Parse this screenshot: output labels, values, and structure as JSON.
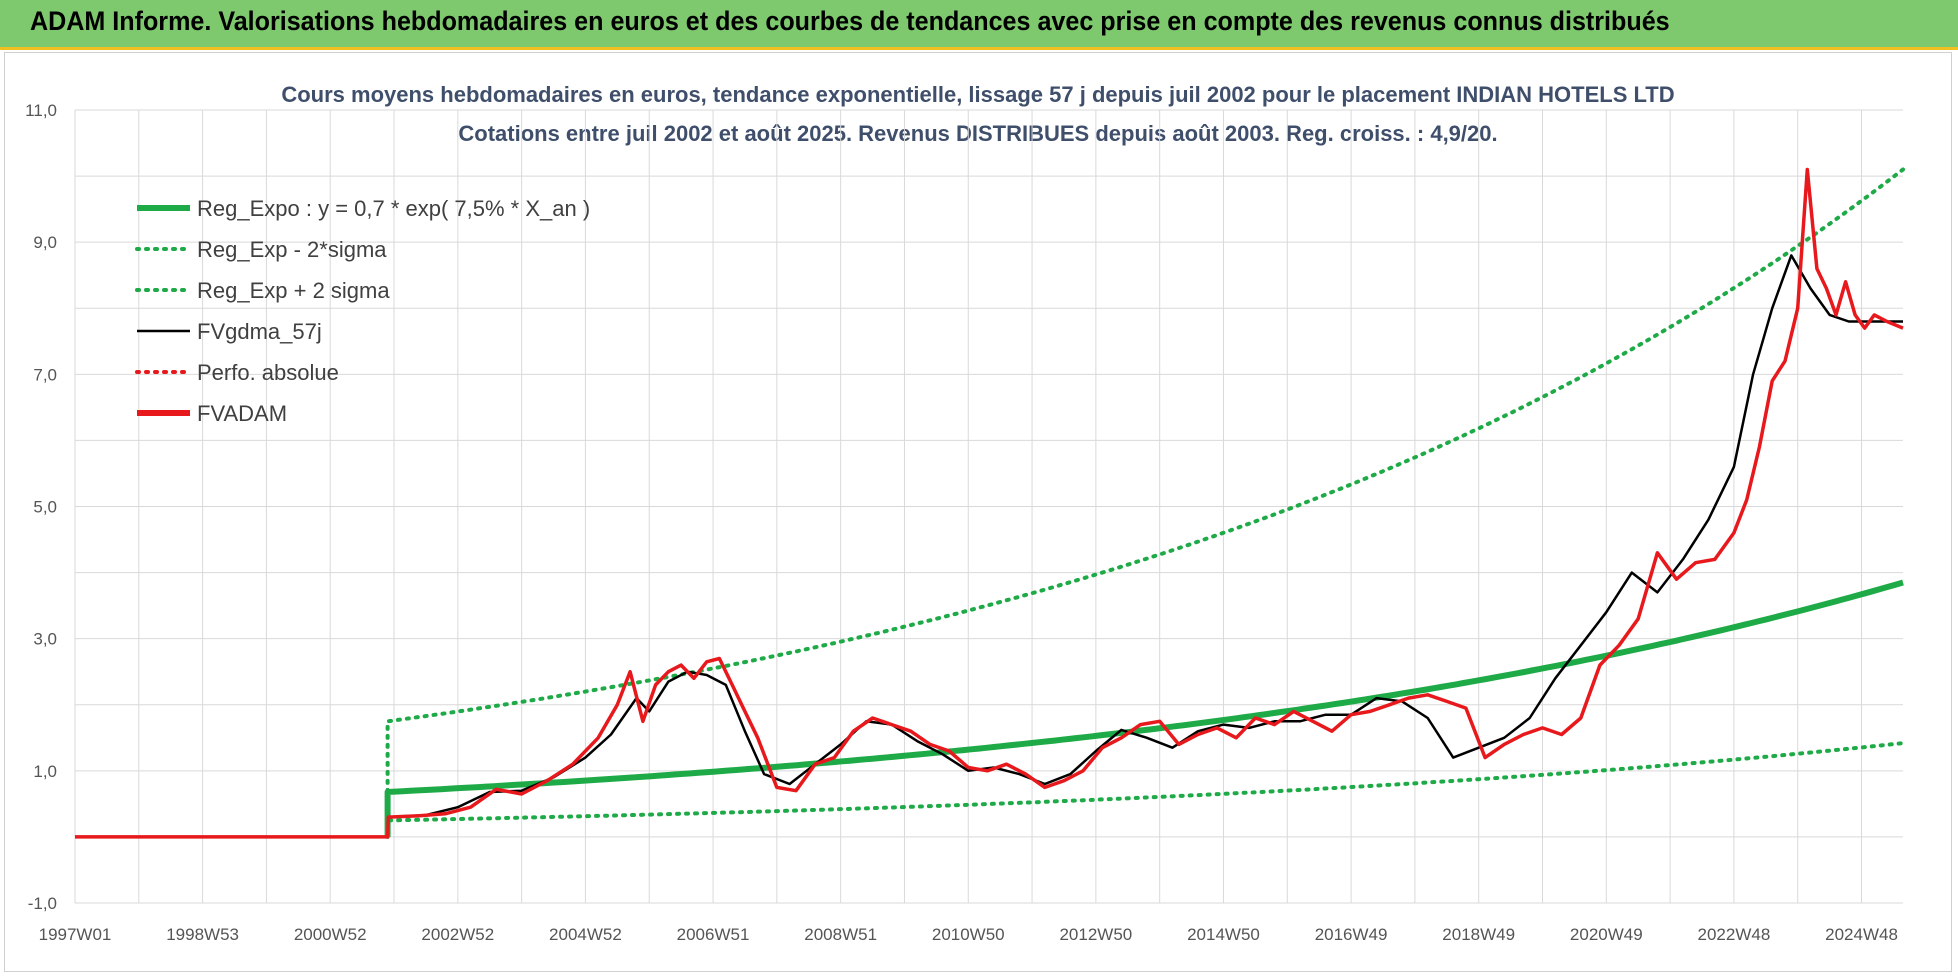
{
  "banner": {
    "title": "ADAM Informe. Valorisations hebdomadaires en euros et des courbes de tendances avec prise en compte des revenus connus distribués",
    "color": "#7ec86e"
  },
  "chart_data": {
    "type": "line",
    "title_line1": "Cours moyens hebdomadaires en euros, tendance exponentielle, lissage 57 j depuis juil 2002 pour le placement INDIAN HOTELS LTD",
    "title_line2": "Cotations entre juil 2002 et août 2025. Revenus DISTRIBUES depuis août 2003. Reg. croiss. : 4,9/20.",
    "ylim": [
      -1,
      11
    ],
    "y_ticks": [
      "-1,0",
      "1,0",
      "3,0",
      "5,0",
      "7,0",
      "9,0",
      "11,0"
    ],
    "x_range": [
      1997.0,
      2025.65
    ],
    "x_tick_labels": [
      "1997W01",
      "1998W53",
      "2000W52",
      "2002W52",
      "2004W52",
      "2006W51",
      "2008W51",
      "2010W50",
      "2012W50",
      "2014W50",
      "2016W49",
      "2018W49",
      "2020W49",
      "2022W48",
      "2024W48"
    ],
    "x_tick_years": [
      1997.0,
      1999.0,
      2001.0,
      2003.0,
      2005.0,
      2007.0,
      2009.0,
      2011.0,
      2013.0,
      2015.0,
      2017.0,
      2019.0,
      2021.0,
      2023.0,
      2025.0
    ],
    "grid": true,
    "legend_position": "top-left",
    "start_year": 2001.9,
    "series": [
      {
        "name": "Reg_Expo : y = 0,7 * exp( 7,5% *  X_an )",
        "color": "#1faa48",
        "style": "solid-thick",
        "x": [
          2001.9,
          2025.65
        ],
        "y": [
          0.68,
          3.85
        ]
      },
      {
        "name": "Reg_Exp - 2*sigma",
        "color": "#1faa48",
        "style": "dotted",
        "x": [
          2001.9,
          2025.65
        ],
        "y": [
          0.25,
          1.42
        ]
      },
      {
        "name": "Reg_Exp + 2 sigma",
        "color": "#1faa48",
        "style": "dotted",
        "x": [
          2001.9,
          2025.65
        ],
        "y": [
          1.75,
          10.1
        ]
      },
      {
        "name": "FVgdma_57j",
        "color": "#000000",
        "style": "solid",
        "x": [
          1997.0,
          2001.9,
          2001.91,
          2002.5,
          2003.0,
          2003.5,
          2004.0,
          2004.5,
          2005.0,
          2005.4,
          2005.8,
          2006.0,
          2006.3,
          2006.6,
          2006.9,
          2007.2,
          2007.5,
          2007.8,
          2008.2,
          2008.6,
          2009.0,
          2009.4,
          2009.8,
          2010.2,
          2010.6,
          2011.0,
          2011.4,
          2011.8,
          2012.2,
          2012.6,
          2013.0,
          2013.4,
          2013.8,
          2014.2,
          2014.6,
          2015.0,
          2015.4,
          2015.8,
          2016.2,
          2016.6,
          2017.0,
          2017.4,
          2017.8,
          2018.2,
          2018.6,
          2019.0,
          2019.4,
          2019.8,
          2020.2,
          2020.6,
          2021.0,
          2021.4,
          2021.8,
          2022.2,
          2022.6,
          2023.0,
          2023.3,
          2023.6,
          2023.9,
          2024.2,
          2024.5,
          2024.8,
          2025.0,
          2025.3,
          2025.65
        ],
        "y": [
          0.0,
          0.0,
          0.3,
          0.33,
          0.45,
          0.68,
          0.7,
          0.9,
          1.2,
          1.55,
          2.1,
          1.9,
          2.35,
          2.5,
          2.45,
          2.3,
          1.6,
          0.95,
          0.8,
          1.1,
          1.4,
          1.75,
          1.7,
          1.45,
          1.25,
          1.0,
          1.05,
          0.95,
          0.8,
          0.95,
          1.3,
          1.62,
          1.5,
          1.35,
          1.6,
          1.7,
          1.65,
          1.75,
          1.75,
          1.85,
          1.85,
          2.1,
          2.05,
          1.8,
          1.2,
          1.35,
          1.5,
          1.8,
          2.4,
          2.9,
          3.4,
          4.0,
          3.7,
          4.2,
          4.8,
          5.6,
          7.0,
          8.0,
          8.8,
          8.3,
          7.9,
          7.8,
          7.8,
          7.8,
          7.8
        ]
      },
      {
        "name": "Perfo. absolue",
        "color": "#e8191c",
        "style": "dotted",
        "x": [],
        "y": []
      },
      {
        "name": "FVADAM",
        "color": "#e8191c",
        "style": "solid-thick",
        "x": [
          1997.0,
          2001.9,
          2001.91,
          2002.4,
          2002.8,
          2003.2,
          2003.6,
          2004.0,
          2004.4,
          2004.8,
          2005.2,
          2005.5,
          2005.7,
          2005.9,
          2006.1,
          2006.3,
          2006.5,
          2006.7,
          2006.9,
          2007.1,
          2007.3,
          2007.5,
          2007.7,
          2008.0,
          2008.3,
          2008.6,
          2008.9,
          2009.2,
          2009.5,
          2009.8,
          2010.1,
          2010.4,
          2010.7,
          2011.0,
          2011.3,
          2011.6,
          2011.9,
          2012.2,
          2012.5,
          2012.8,
          2013.1,
          2013.4,
          2013.7,
          2014.0,
          2014.3,
          2014.6,
          2014.9,
          2015.2,
          2015.5,
          2015.8,
          2016.1,
          2016.4,
          2016.7,
          2017.0,
          2017.3,
          2017.6,
          2017.9,
          2018.2,
          2018.5,
          2018.8,
          2019.1,
          2019.4,
          2019.7,
          2020.0,
          2020.3,
          2020.6,
          2020.9,
          2021.2,
          2021.5,
          2021.8,
          2022.1,
          2022.4,
          2022.7,
          2023.0,
          2023.2,
          2023.4,
          2023.6,
          2023.8,
          2024.0,
          2024.15,
          2024.3,
          2024.45,
          2024.6,
          2024.75,
          2024.9,
          2025.05,
          2025.2,
          2025.4,
          2025.65
        ],
        "y": [
          0.0,
          0.0,
          0.3,
          0.32,
          0.35,
          0.45,
          0.72,
          0.65,
          0.85,
          1.1,
          1.5,
          2.0,
          2.5,
          1.75,
          2.3,
          2.5,
          2.6,
          2.4,
          2.65,
          2.7,
          2.3,
          1.9,
          1.5,
          0.75,
          0.7,
          1.1,
          1.2,
          1.6,
          1.8,
          1.7,
          1.6,
          1.4,
          1.3,
          1.05,
          1.0,
          1.1,
          0.95,
          0.75,
          0.85,
          1.0,
          1.35,
          1.5,
          1.7,
          1.75,
          1.4,
          1.55,
          1.65,
          1.5,
          1.8,
          1.7,
          1.9,
          1.75,
          1.6,
          1.85,
          1.9,
          2.0,
          2.1,
          2.15,
          2.05,
          1.95,
          1.2,
          1.4,
          1.55,
          1.65,
          1.55,
          1.8,
          2.6,
          2.9,
          3.3,
          4.3,
          3.9,
          4.15,
          4.2,
          4.6,
          5.1,
          5.9,
          6.9,
          7.2,
          8.0,
          10.1,
          8.6,
          8.3,
          7.9,
          8.4,
          7.9,
          7.7,
          7.9,
          7.8,
          7.7
        ]
      }
    ]
  }
}
